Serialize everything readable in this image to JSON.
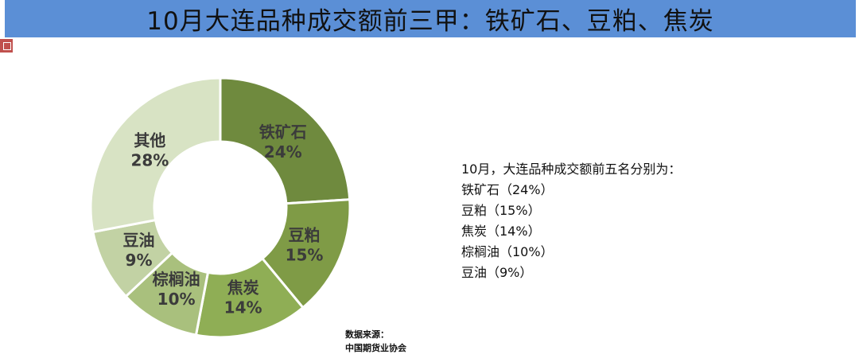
{
  "title": "10月大连品种成交额前三甲：铁矿石、豆粕、焦炭",
  "chart_data": {
    "type": "pie",
    "categories": [
      "铁矿石",
      "豆粕",
      "焦炭",
      "棕榈油",
      "豆油",
      "其他"
    ],
    "values": [
      24,
      15,
      14,
      10,
      9,
      28
    ],
    "value_labels": [
      "24%",
      "15%",
      "14%",
      "10%",
      "9%",
      "28%"
    ],
    "colors": [
      "#6f8a3e",
      "#7f9b46",
      "#8fae55",
      "#a9c07d",
      "#c2d2a4",
      "#d8e3c4"
    ],
    "donut": true
  },
  "summary": {
    "heading": "10月，大连品种成交额前五名分别为：",
    "items": [
      "铁矿石（24%）",
      "豆粕（15%）",
      "焦炭（14%）",
      "棕榈油（10%）",
      "豆油（9%）"
    ]
  },
  "source": {
    "label": "数据来源：",
    "name": "中国期货业协会"
  }
}
